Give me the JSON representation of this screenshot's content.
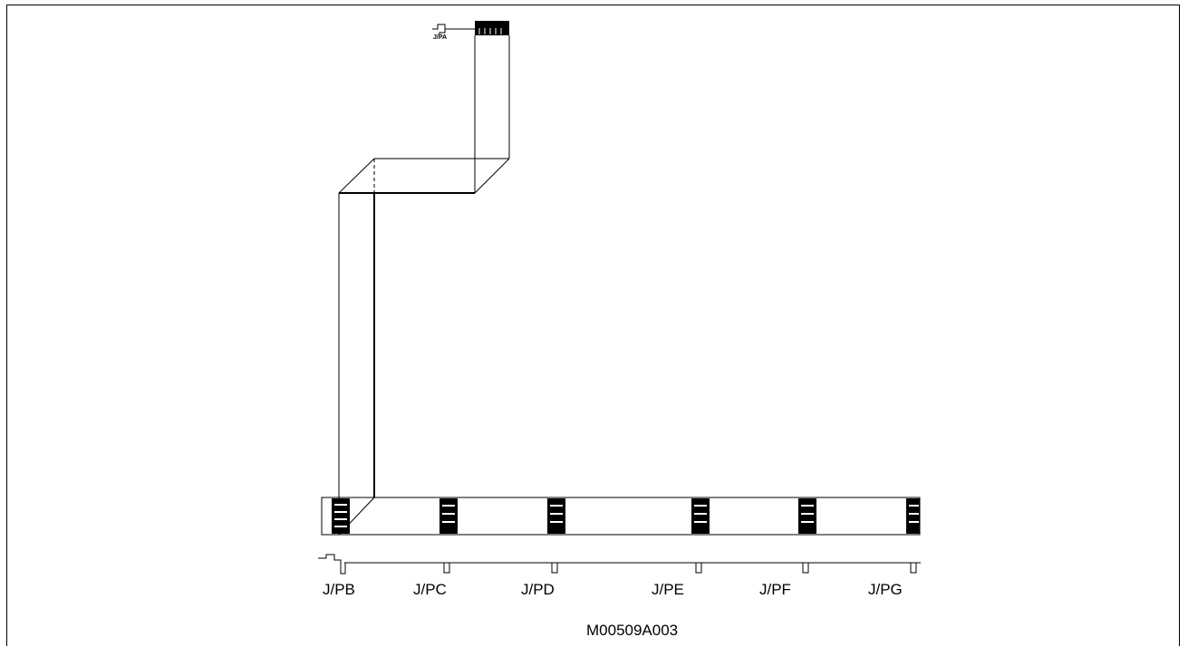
{
  "connectors": {
    "top": "J/PA",
    "bottom": [
      "J/PB",
      "J/PC",
      "J/PD",
      "J/PE",
      "J/PF",
      "J/PG"
    ]
  },
  "figure_id": "M00509A003"
}
